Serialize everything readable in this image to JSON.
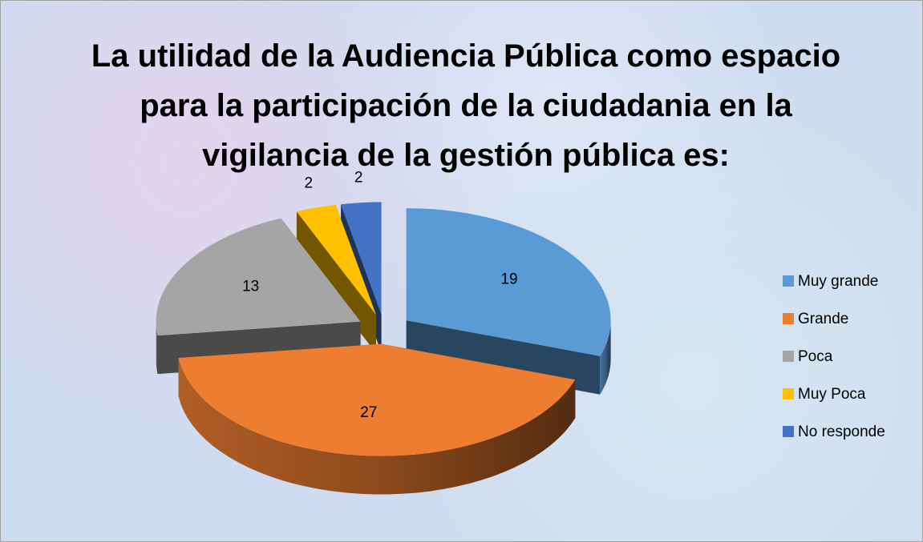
{
  "chart_data": {
    "type": "pie3d",
    "title": "La utilidad de la Audiencia Pública como espacio para la participación de la ciudadania en la vigilancia de la gestión pública es:",
    "categories": [
      "Muy grande",
      "Grande",
      "Poca",
      "Muy Poca",
      "No responde"
    ],
    "values": [
      19,
      27,
      13,
      2,
      2
    ],
    "colors": [
      "#5b9bd5",
      "#ed7d31",
      "#a5a5a5",
      "#ffc000",
      "#4472c4"
    ],
    "legend": "right"
  }
}
